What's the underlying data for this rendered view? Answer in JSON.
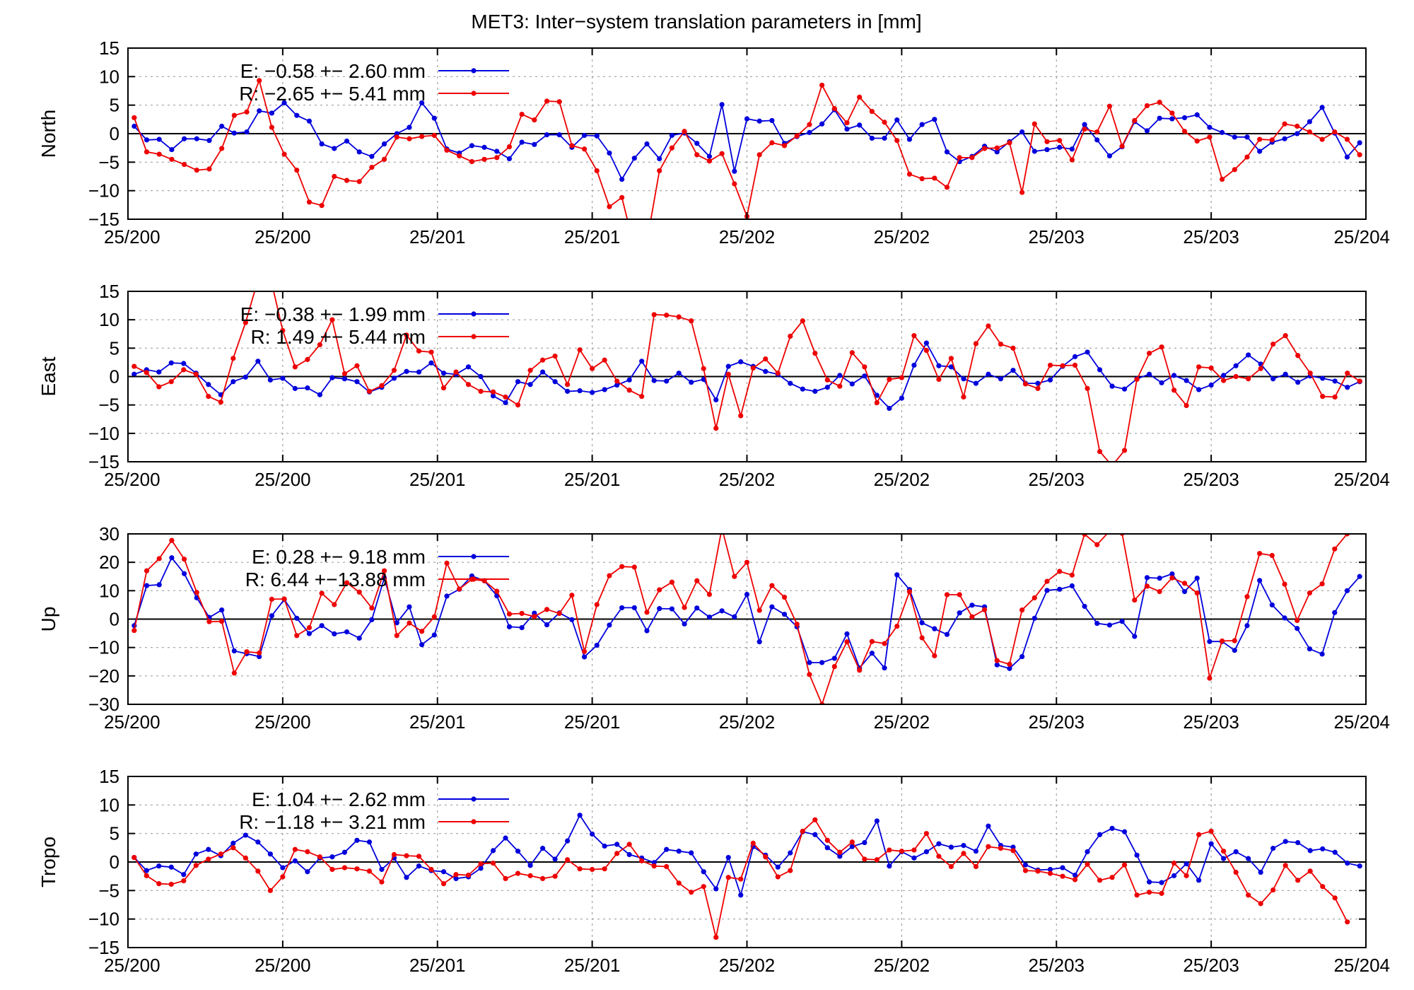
{
  "chart_title": "MET3: Inter−system translation parameters in [mm]",
  "colors": {
    "E": "#0000dd",
    "R": "#ee0000",
    "zero_line": "#000000",
    "grid": "#a0a0a0"
  },
  "chart_data": [
    {
      "type": "line",
      "ylabel": "North",
      "ylim": [
        -15,
        15
      ],
      "yticks": [
        15,
        10,
        5,
        0,
        -5,
        -10,
        -15
      ],
      "xticklabels": [
        "25/200",
        "25/200",
        "25/201",
        "25/201",
        "25/202",
        "25/202",
        "25/203",
        "25/203",
        "25/204"
      ],
      "grid": true,
      "legend_position": "top-left",
      "series": [
        {
          "name": "E",
          "label": "E:  −0.58 +− 2.60 mm",
          "values": [
            1.3,
            -1.1,
            -1.0,
            -2.8,
            -0.9,
            -0.9,
            -1.2,
            1.3,
            0.1,
            0.3,
            4.0,
            3.6,
            5.4,
            3.2,
            2.2,
            -1.8,
            -2.6,
            -1.3,
            -3.2,
            -4.0,
            -1.8,
            0.0,
            1.1,
            5.4,
            2.7,
            -2.7,
            -3.4,
            -2.1,
            -2.4,
            -3.1,
            -4.4,
            -1.5,
            -1.9,
            -0.2,
            -0.2,
            -2.4,
            -0.3,
            -0.4,
            -3.4,
            -8.0,
            -4.3,
            -1.8,
            -4.4,
            -0.3,
            0.1,
            -1.7,
            -4.0,
            5.1,
            -6.6,
            2.6,
            2.2,
            2.3,
            -1.7,
            -0.5,
            0.2,
            1.7,
            4.2,
            0.8,
            1.5,
            -0.8,
            -0.8,
            2.4,
            -1.0,
            1.6,
            2.5,
            -3.2,
            -4.9,
            -4.0,
            -2.2,
            -3.2,
            -1.4,
            0.3,
            -3.1,
            -2.8,
            -2.4,
            -2.7,
            1.6,
            -1.1,
            -3.9,
            -2.3,
            2.1,
            0.5,
            2.7,
            2.6,
            2.8,
            3.3,
            1.1,
            0.2,
            -0.6,
            -0.6,
            -3.1,
            -1.5,
            -0.9,
            0.0,
            2.1,
            4.6,
            0.1,
            -4.1,
            -1.6
          ]
        },
        {
          "name": "R",
          "label": "R:  −2.65 +− 5.41 mm",
          "values": [
            2.8,
            -3.2,
            -3.6,
            -4.5,
            -5.4,
            -6.4,
            -6.2,
            -2.6,
            3.2,
            3.8,
            9.3,
            1.1,
            -3.6,
            -6.4,
            -12.0,
            -12.6,
            -7.5,
            -8.2,
            -8.4,
            -5.9,
            -4.5,
            -0.6,
            -0.9,
            -0.5,
            -0.3,
            -2.9,
            -3.9,
            -4.9,
            -4.5,
            -4.2,
            -2.3,
            3.4,
            2.4,
            5.7,
            5.6,
            -2.1,
            -2.7,
            -6.5,
            -12.8,
            -11.2,
            -20.0,
            -19.0,
            -6.5,
            -2.5,
            0.4,
            -3.7,
            -4.8,
            -3.5,
            -8.8,
            -14.5,
            -3.7,
            -1.6,
            -2.1,
            -0.4,
            1.6,
            8.5,
            4.4,
            1.9,
            6.4,
            3.9,
            2.0,
            -1.2,
            -7.1,
            -7.9,
            -7.8,
            -9.4,
            -4.2,
            -4.2,
            -2.6,
            -2.5,
            -1.6,
            -10.3,
            1.7,
            -1.4,
            -1.2,
            -4.6,
            0.8,
            0.3,
            4.8,
            -2.2,
            2.3,
            4.9,
            5.5,
            3.6,
            0.4,
            -1.3,
            -0.6,
            -8.0,
            -6.3,
            -4.1,
            -1.0,
            -1.1,
            1.7,
            1.3,
            0.3,
            -1.0,
            0.3,
            -1.0,
            -3.7
          ]
        }
      ]
    },
    {
      "type": "line",
      "ylabel": "East",
      "ylim": [
        -15,
        15
      ],
      "yticks": [
        15,
        10,
        5,
        0,
        -5,
        -10,
        -15
      ],
      "xticklabels": [
        "25/200",
        "25/200",
        "25/201",
        "25/201",
        "25/202",
        "25/202",
        "25/203",
        "25/203",
        "25/204"
      ],
      "grid": true,
      "legend_position": "top-left",
      "series": [
        {
          "name": "E",
          "label": "E:  −0.38 +− 1.99 mm",
          "values": [
            0.4,
            1.2,
            0.8,
            2.4,
            2.3,
            0.6,
            -1.4,
            -3.2,
            -0.9,
            -0.1,
            2.7,
            -0.6,
            -0.3,
            -2.1,
            -2.0,
            -3.2,
            -0.2,
            -0.4,
            -0.9,
            -2.7,
            -1.9,
            -0.3,
            0.9,
            0.8,
            2.4,
            0.6,
            0.4,
            1.7,
            0.0,
            -3.4,
            -4.6,
            -0.9,
            -1.4,
            0.8,
            -0.9,
            -2.6,
            -2.5,
            -2.8,
            -2.3,
            -1.5,
            -0.6,
            2.7,
            -0.7,
            -0.8,
            0.6,
            -1.0,
            -0.5,
            -4.1,
            1.8,
            2.6,
            1.8,
            0.9,
            0.4,
            -1.2,
            -2.2,
            -2.6,
            -1.9,
            0.2,
            -1.3,
            0.1,
            -3.3,
            -5.6,
            -3.8,
            2.0,
            5.9,
            1.9,
            1.7,
            -0.4,
            -1.2,
            0.4,
            -0.4,
            1.1,
            -1.2,
            -1.2,
            -0.6,
            1.8,
            3.5,
            4.3,
            1.2,
            -1.7,
            -2.2,
            -0.4,
            0.4,
            -1.1,
            0.2,
            -0.7,
            -2.3,
            -1.5,
            0.2,
            1.9,
            3.8,
            2.2,
            -0.4,
            0.4,
            -1.0,
            0.1,
            -0.3,
            -0.8,
            -1.9,
            -0.9
          ]
        },
        {
          "name": "R",
          "label": "R:  1.49 +− 5.44 mm",
          "values": [
            1.8,
            0.7,
            -1.8,
            -0.9,
            1.2,
            0.4,
            -3.5,
            -4.5,
            3.2,
            9.5,
            17.0,
            17.5,
            8.1,
            1.7,
            3.0,
            5.6,
            10.0,
            0.5,
            1.9,
            -2.6,
            -1.6,
            1.1,
            7.3,
            4.5,
            4.3,
            -2.0,
            0.8,
            -1.4,
            -2.6,
            -2.7,
            -3.6,
            -5.0,
            1.1,
            2.9,
            3.6,
            -1.4,
            4.7,
            1.4,
            2.9,
            -0.8,
            -2.4,
            -3.5,
            10.9,
            10.8,
            10.5,
            9.8,
            1.4,
            -9.1,
            0.4,
            -6.9,
            1.5,
            3.1,
            0.6,
            7.1,
            9.8,
            4.1,
            -0.6,
            -1.7,
            4.2,
            1.7,
            -4.6,
            -0.5,
            -0.2,
            7.2,
            4.6,
            -0.5,
            3.2,
            -3.6,
            5.8,
            8.9,
            5.7,
            5.0,
            -1.3,
            -2.1,
            2.0,
            1.9,
            2.0,
            -2.1,
            -13.2,
            -15.7,
            -13.0,
            -0.5,
            4.1,
            5.2,
            -2.4,
            -5.1,
            1.7,
            1.5,
            -0.7,
            0.0,
            -0.4,
            1.4,
            5.7,
            7.2,
            3.7,
            0.6,
            -3.5,
            -3.6,
            0.6,
            -0.8
          ]
        }
      ]
    },
    {
      "type": "line",
      "ylabel": "Up",
      "ylim": [
        -30,
        30
      ],
      "yticks": [
        30,
        20,
        10,
        0,
        -10,
        -20,
        -30
      ],
      "xticklabels": [
        "25/200",
        "25/200",
        "25/201",
        "25/201",
        "25/202",
        "25/202",
        "25/203",
        "25/203",
        "25/204"
      ],
      "grid": true,
      "legend_position": "top-left",
      "series": [
        {
          "name": "E",
          "label": "E:   0.28 +− 9.18 mm",
          "values": [
            -2.3,
            11.8,
            12.1,
            21.6,
            16.0,
            7.5,
            0.6,
            3.2,
            -11.2,
            -12.2,
            -13.2,
            1.2,
            6.9,
            0.3,
            -5.1,
            -2.3,
            -5.2,
            -4.5,
            -6.7,
            -0.2,
            14.5,
            -1.3,
            4.3,
            -9.0,
            -5.6,
            8.1,
            10.5,
            15.2,
            13.5,
            8.2,
            -2.7,
            -3.0,
            2.1,
            -2.0,
            2.2,
            -0.2,
            -13.3,
            -9.2,
            -2.1,
            4.0,
            4.0,
            -4.1,
            3.7,
            3.6,
            -1.7,
            3.9,
            0.7,
            2.9,
            0.8,
            8.7,
            -8.0,
            4.3,
            1.7,
            -2.7,
            -15.3,
            -15.3,
            -13.8,
            -5.2,
            -17.2,
            -12.0,
            -17.2,
            15.6,
            10.4,
            -1.3,
            -3.4,
            -5.4,
            2.2,
            4.9,
            4.3,
            -16.1,
            -17.4,
            -13.2,
            0.3,
            10.1,
            10.5,
            11.7,
            4.5,
            -1.5,
            -2.1,
            -0.8,
            -6.1,
            14.6,
            14.4,
            15.9,
            9.7,
            14.4,
            -7.9,
            -7.9,
            -11.0,
            -2.3,
            13.6,
            5.0,
            0.4,
            -3.3,
            -10.5,
            -12.3,
            2.3,
            10.0,
            15.0
          ]
        },
        {
          "name": "R",
          "label": "R:  6.44 +−13.88 mm",
          "values": [
            -4.0,
            17.0,
            21.3,
            27.7,
            21.1,
            9.4,
            -0.9,
            -0.8,
            -19.0,
            -11.5,
            -11.9,
            7.0,
            7.1,
            -5.8,
            -3.0,
            9.1,
            5.1,
            12.8,
            9.5,
            3.9,
            17.0,
            -5.8,
            -1.4,
            -4.3,
            0.8,
            19.7,
            10.6,
            14.0,
            13.5,
            9.8,
            1.8,
            2.0,
            0.9,
            3.4,
            2.0,
            8.4,
            -11.4,
            5.1,
            15.3,
            18.5,
            18.3,
            2.4,
            10.3,
            13.0,
            4.1,
            13.5,
            8.7,
            32.0,
            15.0,
            20.0,
            3.1,
            11.8,
            7.7,
            -1.8,
            -19.5,
            -30.0,
            -16.7,
            -8.0,
            -18.0,
            -7.9,
            -8.6,
            -2.5,
            9.7,
            -6.6,
            -12.9,
            8.6,
            8.6,
            0.8,
            3.3,
            -14.6,
            -15.9,
            3.2,
            7.5,
            13.3,
            16.8,
            15.5,
            29.9,
            26.2,
            31.0,
            30.2,
            6.7,
            11.6,
            9.7,
            14.5,
            12.6,
            9.2,
            -20.8,
            -7.7,
            -7.6,
            7.9,
            23.1,
            22.4,
            12.3,
            -0.5,
            9.2,
            12.4,
            24.7,
            30.0,
            33.0
          ]
        }
      ]
    },
    {
      "type": "line",
      "ylabel": "Tropo",
      "ylim": [
        -15,
        15
      ],
      "yticks": [
        15,
        10,
        5,
        0,
        -5,
        -10,
        -15
      ],
      "xticklabels": [
        "25/200",
        "25/200",
        "25/201",
        "25/201",
        "25/202",
        "25/202",
        "25/203",
        "25/203",
        "25/204"
      ],
      "grid": true,
      "legend_position": "top-left",
      "series": [
        {
          "name": "E",
          "label": "E:  1.04 +− 2.62 mm",
          "values": [
            0.8,
            -1.5,
            -0.7,
            -0.9,
            -2.2,
            1.4,
            2.2,
            1.1,
            3.3,
            4.7,
            3.5,
            1.4,
            -1.0,
            0.2,
            -1.7,
            0.7,
            0.9,
            1.7,
            3.8,
            3.5,
            -1.3,
            0.7,
            -2.7,
            -0.7,
            -1.5,
            -1.7,
            -2.9,
            -2.6,
            -1.1,
            2.0,
            4.2,
            1.9,
            -0.6,
            2.4,
            0.5,
            3.7,
            8.2,
            4.9,
            2.8,
            3.1,
            1.3,
            0.7,
            -0.1,
            2.2,
            1.9,
            1.6,
            -1.7,
            -4.7,
            0.8,
            -5.8,
            2.7,
            1.2,
            -0.9,
            1.6,
            5.3,
            4.8,
            2.5,
            1.0,
            2.7,
            3.4,
            7.2,
            -0.7,
            1.8,
            0.7,
            1.8,
            3.2,
            2.6,
            2.9,
            1.9,
            6.3,
            2.9,
            2.6,
            -0.5,
            -1.4,
            -1.3,
            -1.0,
            -2.3,
            1.8,
            4.8,
            5.9,
            5.3,
            1.2,
            -3.5,
            -3.6,
            -2.4,
            -0.3,
            -3.2,
            3.2,
            0.6,
            1.8,
            0.6,
            -1.8,
            2.4,
            3.6,
            3.4,
            2.0,
            2.3,
            1.7,
            -0.2,
            -0.7
          ]
        },
        {
          "name": "R",
          "label": "R:  −1.18 +− 3.21 mm",
          "values": [
            0.8,
            -2.4,
            -3.8,
            -3.9,
            -3.3,
            -0.6,
            0.5,
            1.4,
            2.5,
            0.7,
            -1.6,
            -5.0,
            -2.6,
            2.2,
            1.8,
            0.9,
            -1.3,
            -1.0,
            -1.2,
            -1.6,
            -3.5,
            1.3,
            1.1,
            1.0,
            -1.3,
            -3.8,
            -2.2,
            -2.3,
            -0.3,
            -0.2,
            -2.9,
            -2.0,
            -2.4,
            -2.9,
            -2.5,
            0.4,
            -1.2,
            -1.3,
            -1.2,
            1.5,
            3.1,
            0.2,
            -0.7,
            -0.8,
            -3.7,
            -5.3,
            -4.3,
            -13.2,
            -2.7,
            -3.0,
            3.3,
            0.9,
            -2.6,
            -1.5,
            5.4,
            7.4,
            3.8,
            1.7,
            3.5,
            0.5,
            0.4,
            2.1,
            1.9,
            2.1,
            5.0,
            1.0,
            -0.8,
            1.5,
            -0.8,
            2.7,
            2.4,
            2.0,
            -1.5,
            -1.6,
            -2.0,
            -2.5,
            -3.1,
            -0.4,
            -3.2,
            -2.7,
            -0.5,
            -5.8,
            -5.3,
            -5.5,
            -0.2,
            -2.4,
            4.8,
            5.4,
            1.9,
            -1.8,
            -5.8,
            -7.3,
            -4.9,
            -0.6,
            -3.2,
            -1.6,
            -4.3,
            -6.3,
            -10.5
          ]
        }
      ]
    }
  ]
}
